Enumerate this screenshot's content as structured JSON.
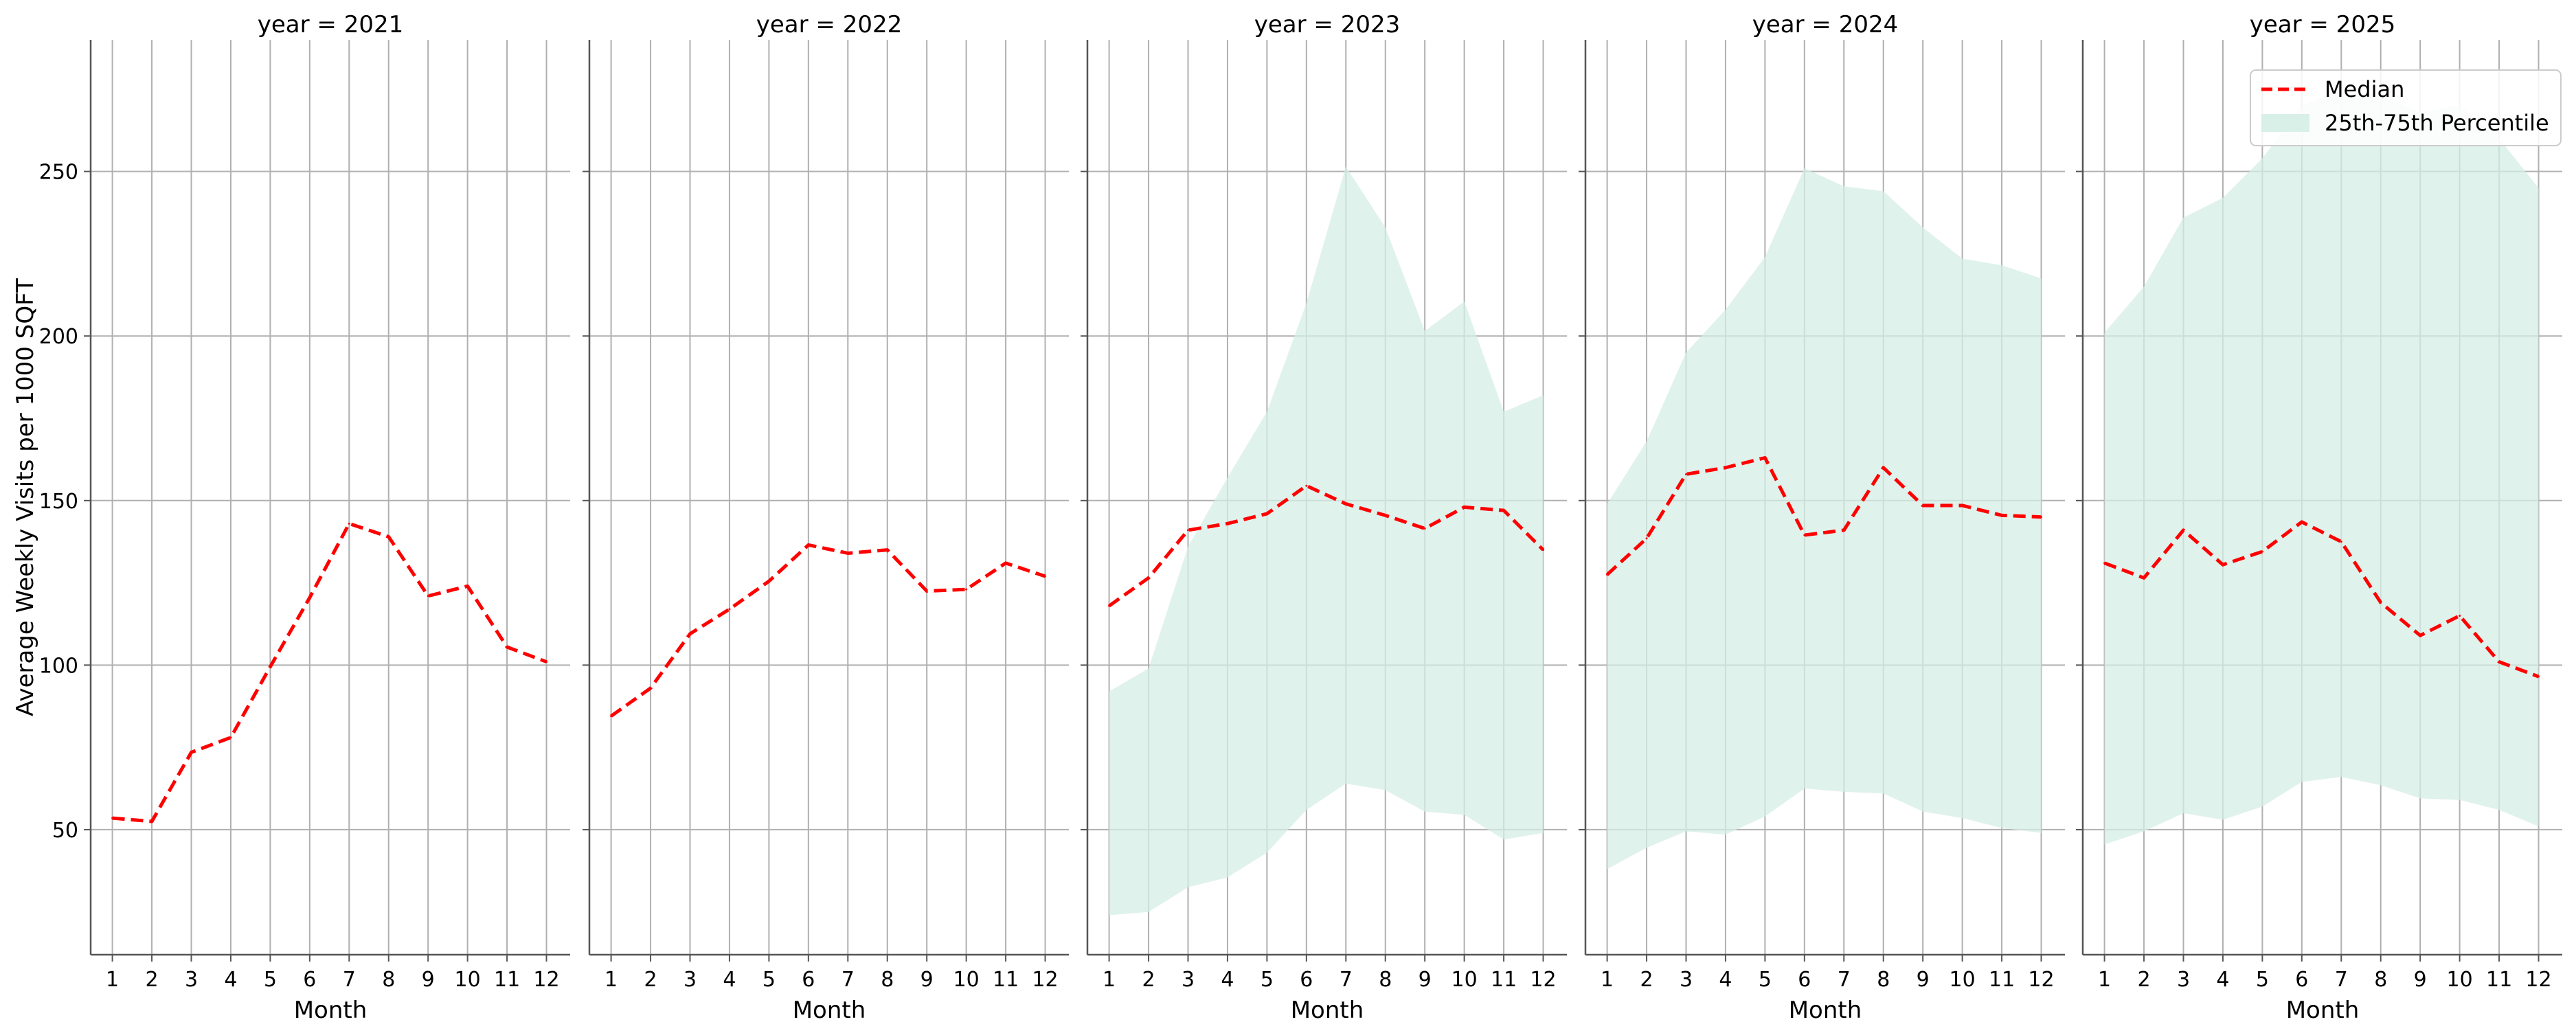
{
  "chart_data": {
    "type": "line",
    "ylabel": "Average Weekly Visits per 1000 SQFT",
    "ylim": [
      12,
      290
    ],
    "yticks": [
      50,
      100,
      150,
      200,
      250
    ],
    "xticks": [
      1,
      2,
      3,
      4,
      5,
      6,
      7,
      8,
      9,
      10,
      11,
      12
    ],
    "grid": true,
    "legend": {
      "position": "upper right of last panel",
      "median_label": "Median",
      "band_label": "25th-75th Percentile"
    },
    "colors": {
      "median": "#ff0000",
      "band": "#d5eee6",
      "grid": "#b0b0b0",
      "axis": "#555555"
    },
    "panels": [
      {
        "title": "year = 2021",
        "xlabel": "Month",
        "x": [
          1,
          2,
          3,
          4,
          5,
          6,
          7,
          8,
          9,
          10,
          11,
          12
        ],
        "median": [
          53.5,
          52.5,
          73.5,
          78,
          99.5,
          120.5,
          143,
          139,
          121,
          124,
          105.5,
          101
        ],
        "p25": null,
        "p75": null
      },
      {
        "title": "year = 2022",
        "xlabel": "Month",
        "x": [
          1,
          2,
          3,
          4,
          5,
          6,
          7,
          8,
          9,
          10,
          11,
          12
        ],
        "median": [
          84.5,
          93,
          109.5,
          117,
          125.5,
          136.5,
          134,
          135,
          122.5,
          123,
          131,
          127
        ],
        "p25": null,
        "p75": null
      },
      {
        "title": "year = 2023",
        "xlabel": "Month",
        "x": [
          1,
          2,
          3,
          4,
          5,
          6,
          7,
          8,
          9,
          10,
          11,
          12
        ],
        "median": [
          118,
          126.5,
          141,
          143,
          146,
          154.5,
          149,
          145.5,
          141.5,
          148,
          147,
          135
        ],
        "p25": [
          24,
          25,
          32.5,
          35.5,
          43,
          56,
          64,
          62,
          55.5,
          54.5,
          47,
          49
        ],
        "p75": [
          92,
          99,
          136,
          157,
          177,
          210,
          251.5,
          233,
          201.5,
          210.5,
          177,
          182
        ]
      },
      {
        "title": "year = 2024",
        "xlabel": "Month",
        "x": [
          1,
          2,
          3,
          4,
          5,
          6,
          7,
          8,
          9,
          10,
          11,
          12
        ],
        "median": [
          127.5,
          138.5,
          158,
          160,
          163,
          139.5,
          141,
          160,
          148.5,
          148.5,
          145.5,
          145
        ],
        "p25": [
          38,
          44.5,
          49.5,
          48.5,
          54,
          62.5,
          61.5,
          61,
          55.5,
          53.5,
          50.5,
          49
        ],
        "p75": [
          149,
          168,
          195,
          208,
          224,
          251,
          245.5,
          244,
          233,
          223.5,
          221.5,
          217.5
        ]
      },
      {
        "title": "year = 2025",
        "xlabel": "Month",
        "x": [
          1,
          2,
          3,
          4,
          5,
          6,
          7,
          8,
          9,
          10,
          11,
          12
        ],
        "median": [
          131,
          126.5,
          141,
          130.5,
          134.5,
          143.5,
          137.5,
          119,
          109,
          115,
          101,
          96.5
        ],
        "p25": [
          45.5,
          49.5,
          55,
          53,
          57,
          64.5,
          66,
          63.5,
          59.5,
          59,
          56,
          51
        ],
        "p75": [
          201,
          215,
          236,
          242,
          254,
          270,
          275,
          273,
          268,
          270,
          260,
          245
        ]
      }
    ]
  }
}
